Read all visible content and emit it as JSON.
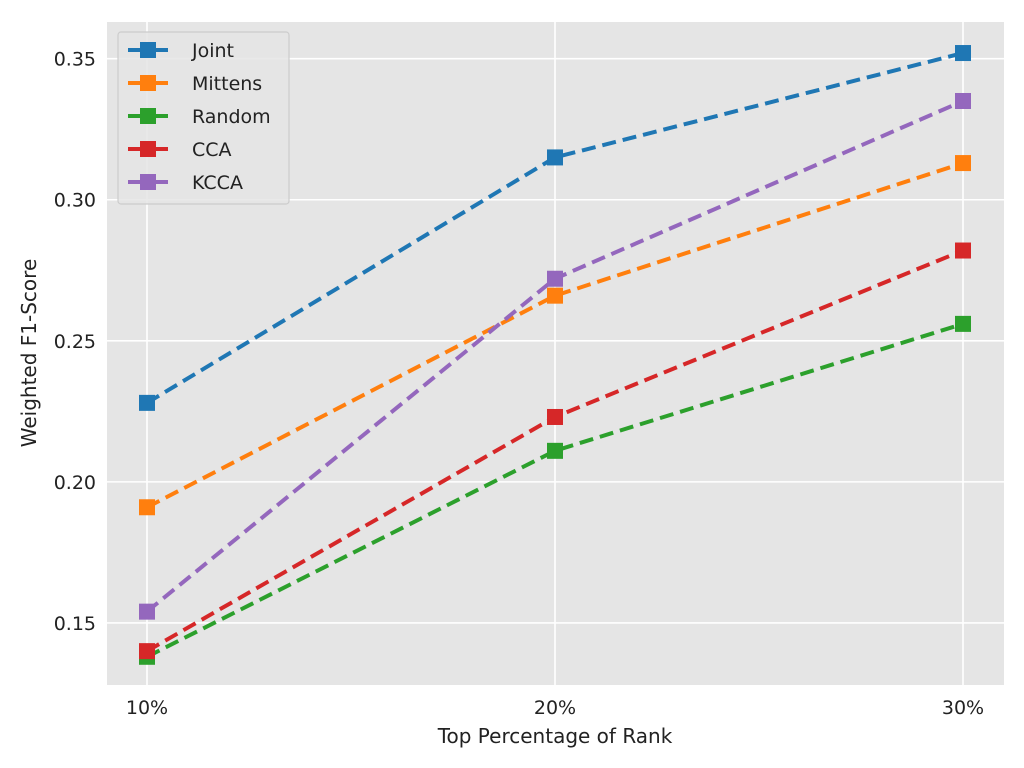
{
  "chart_data": {
    "type": "line",
    "x": [
      "10%",
      "20%",
      "30%"
    ],
    "xlabel": "Top Percentage of Rank",
    "ylabel": "Weighted F1-Score",
    "ylim": [
      0.128,
      0.363
    ],
    "yticks": [
      "0.15",
      "0.20",
      "0.25",
      "0.30",
      "0.35"
    ],
    "grid": true,
    "legend_position": "top-left",
    "line_style": "dashed",
    "marker": "square",
    "series": [
      {
        "name": "Joint",
        "color": "#1f77b4",
        "values": [
          0.228,
          0.315,
          0.352
        ]
      },
      {
        "name": "Mittens",
        "color": "#ff7f0e",
        "values": [
          0.191,
          0.266,
          0.313
        ]
      },
      {
        "name": "Random",
        "color": "#2ca02c",
        "values": [
          0.138,
          0.211,
          0.256
        ]
      },
      {
        "name": "CCA",
        "color": "#d62728",
        "values": [
          0.14,
          0.223,
          0.282
        ]
      },
      {
        "name": "KCCA",
        "color": "#9467bd",
        "values": [
          0.154,
          0.272,
          0.335
        ]
      }
    ]
  }
}
